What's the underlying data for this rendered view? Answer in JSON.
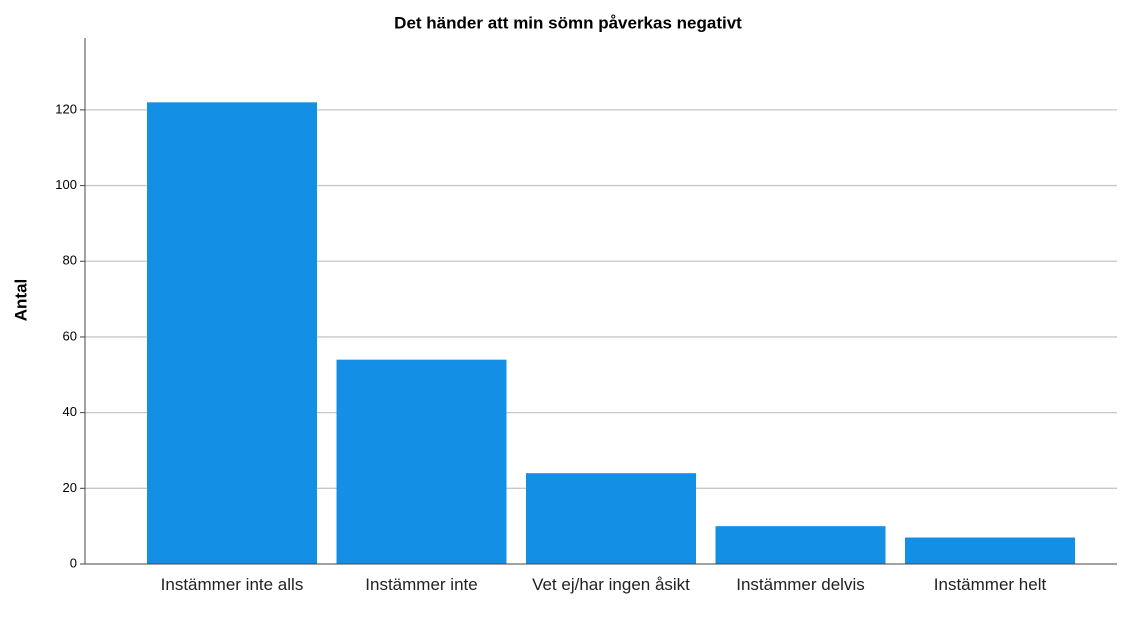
{
  "chart_data": {
    "type": "bar",
    "title": "Det händer att min sömn påverkas negativt",
    "y_label": "Antal",
    "categories": [
      "Instämmer inte alls",
      "Instämmer inte",
      "Vet ej/har ingen åsikt",
      "Instämmer delvis",
      "Instämmer helt"
    ],
    "values": [
      122,
      54,
      24,
      10,
      7
    ],
    "color": "#1390e6",
    "ylim": [
      0,
      139
    ],
    "yticks": [
      0,
      20,
      40,
      60,
      80,
      100,
      120
    ],
    "grid": true
  }
}
